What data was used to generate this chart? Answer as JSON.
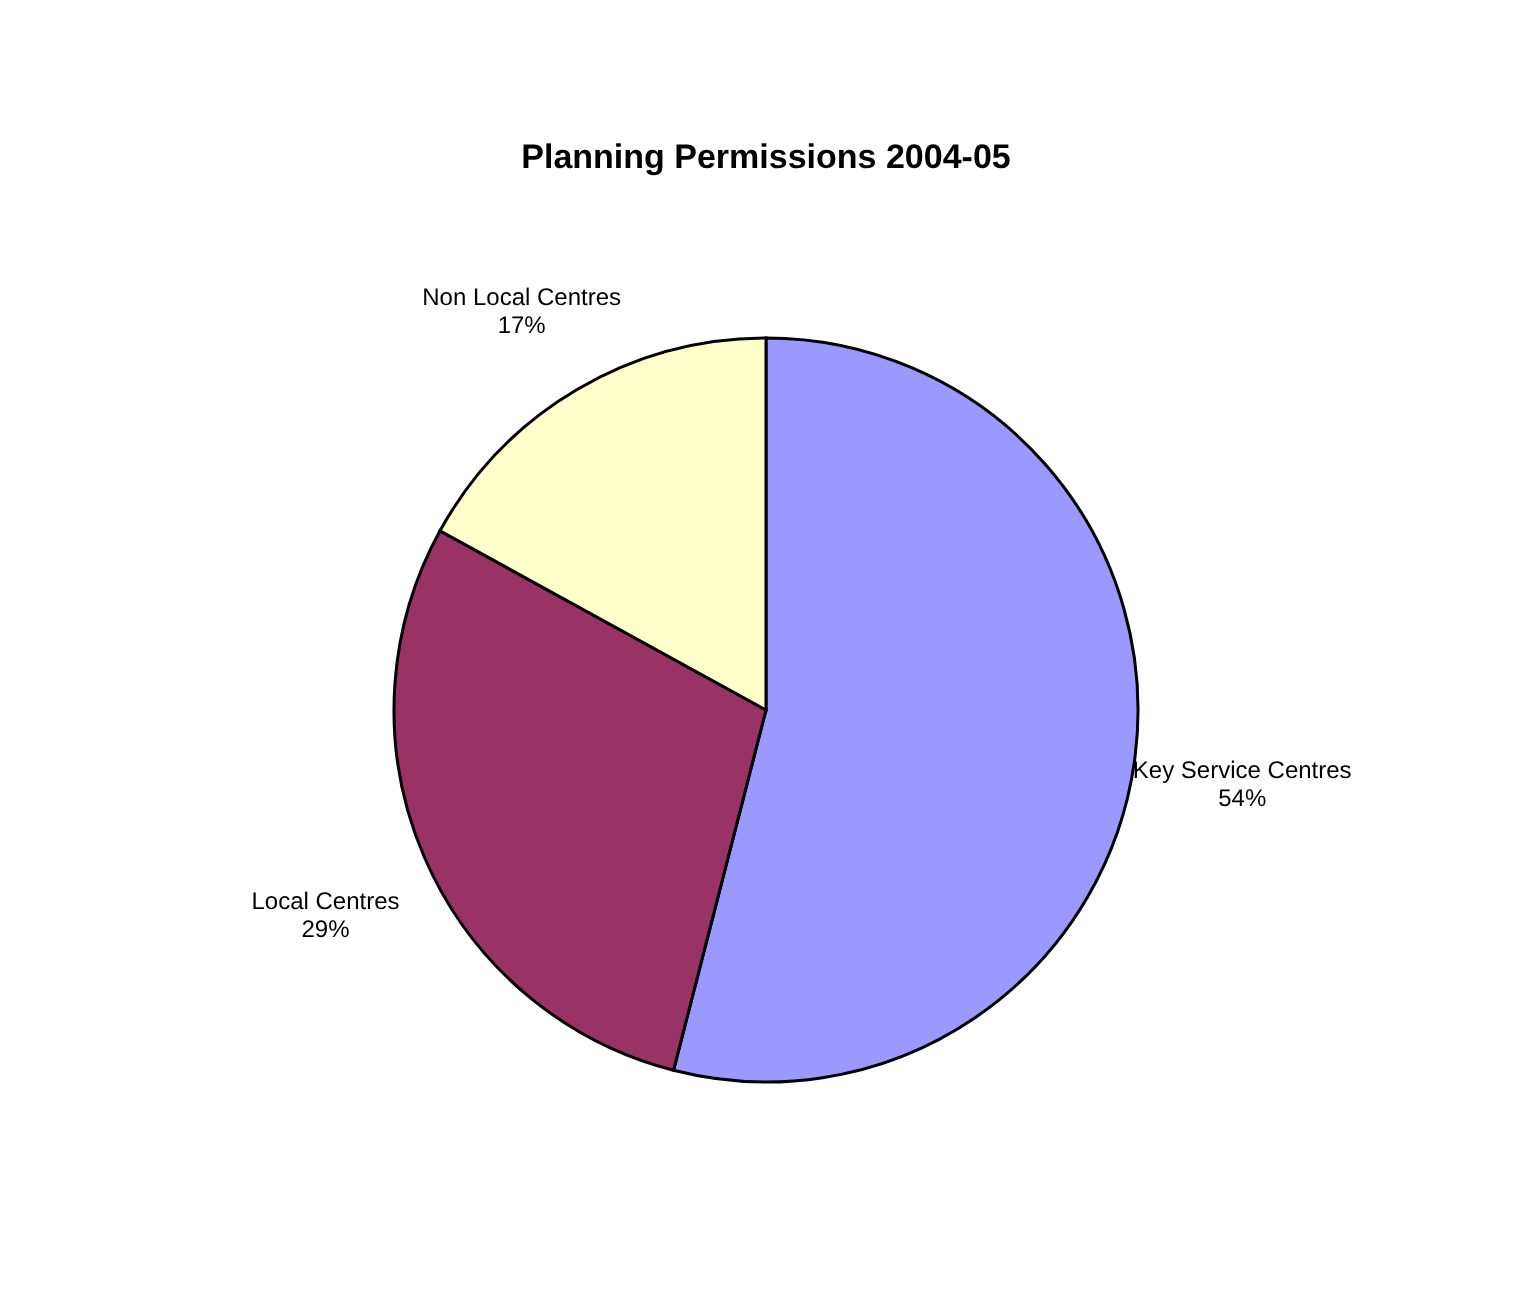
{
  "chart_data": {
    "type": "pie",
    "title": "Planning Permissions 2004-05",
    "categories": [
      "Key Service Centres",
      "Local Centres",
      "Non Local Centres"
    ],
    "values": [
      54,
      29,
      17
    ],
    "colors": [
      "#9999ff",
      "#993366",
      "#ffffcc"
    ],
    "value_labels": [
      "54%",
      "29%",
      "17%"
    ],
    "legend": false
  }
}
